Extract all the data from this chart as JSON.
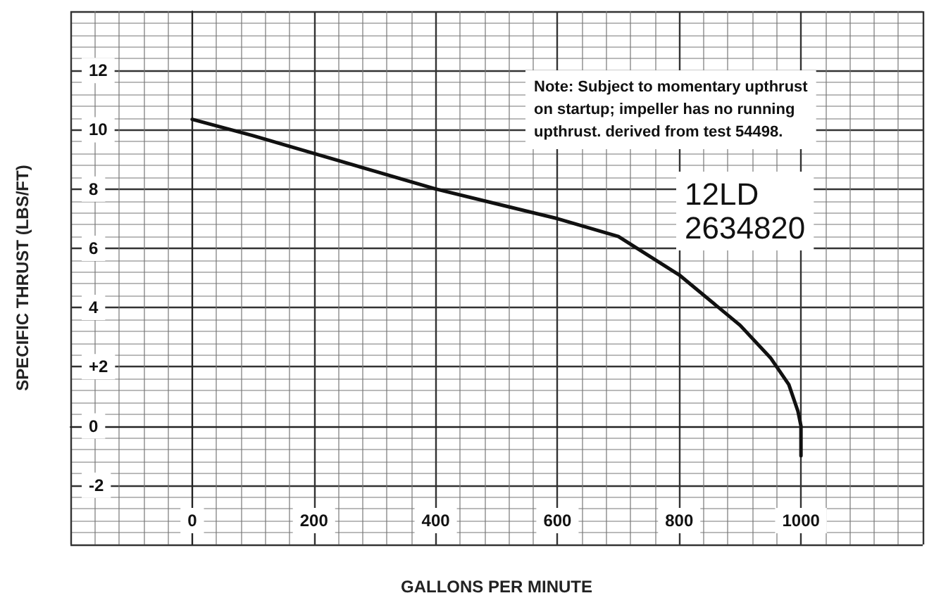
{
  "chart_data": {
    "type": "line",
    "xlabel": "GALLONS PER MINUTE",
    "ylabel": "SPECIFIC THRUST (LBS/FT)",
    "annotations": [
      "Note: Subject to momentary upthrust\non startup; impeller has no running\nupthrust. derived from test 54498.",
      "12LD\n2634820"
    ],
    "series": [
      {
        "color": "#111111",
        "x": [
          0,
          100,
          200,
          300,
          400,
          500,
          600,
          700,
          800,
          900,
          950,
          980,
          995,
          1000,
          1000
        ],
        "values": [
          10.35,
          9.8,
          9.2,
          8.6,
          8.0,
          7.5,
          7.0,
          6.4,
          5.1,
          3.4,
          2.3,
          1.4,
          0.5,
          0,
          -1
        ]
      }
    ],
    "xlim": [
      -200,
      1200
    ],
    "xticks": [
      0,
      200,
      400,
      600,
      800,
      1000
    ],
    "ylim": [
      -4,
      14
    ],
    "yticks": [
      -2,
      0,
      {
        "value": 2,
        "label": "+2"
      },
      4,
      6,
      8,
      10,
      12
    ],
    "grid": true,
    "marker": "none",
    "line_style": "solid"
  }
}
